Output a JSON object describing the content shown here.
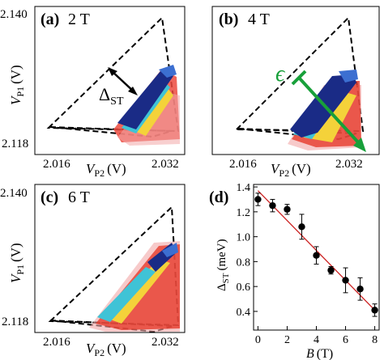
{
  "panels": [
    {
      "id": "a",
      "label": "(a)",
      "field": "2 T",
      "y_label": "V",
      "y_label_sub": "P1",
      "y_label_unit": "(V)",
      "y_ticks": [
        "2.140",
        "2.118"
      ],
      "x_label": "V",
      "x_label_sub": "P2",
      "x_label_unit": "(V)",
      "x_ticks": [
        "2.016",
        "2.032"
      ],
      "annotation": "Δ",
      "annotation_sub": "ST"
    },
    {
      "id": "b",
      "label": "(b)",
      "field": "4 T",
      "x_label": "V",
      "x_label_sub": "P2",
      "x_label_unit": "(V)",
      "x_ticks": [
        "2.016",
        "2.032"
      ],
      "annotation": "ϵ",
      "annotation_color": "#18a03a"
    },
    {
      "id": "c",
      "label": "(c)",
      "field": "6 T",
      "y_label": "V",
      "y_label_sub": "P1",
      "y_label_unit": "(V)",
      "y_ticks": [
        "2.140",
        "2.118"
      ],
      "x_label": "V",
      "x_label_sub": "P2",
      "x_label_unit": "(V)",
      "x_ticks": [
        "2.016",
        "2.032"
      ]
    }
  ],
  "chart_data": [
    {
      "type": "scatter",
      "panel_label": "(d)",
      "xlabel": "B",
      "xlabel_unit": "(T)",
      "ylabel": "Δ",
      "ylabel_sub": "ST",
      "ylabel_unit": "(meV)",
      "xlim": [
        -0.3,
        8.3
      ],
      "ylim": [
        0.25,
        1.42
      ],
      "x_ticks": [
        0,
        2,
        4,
        6,
        8
      ],
      "y_ticks": [
        0.4,
        0.6,
        0.8,
        1.0,
        1.2,
        1.4
      ],
      "y_tick_labels": [
        "0.4",
        "0.6",
        "0.8",
        "1.0",
        "1.2",
        "1.4"
      ],
      "marker_color": "#000000",
      "fit_color": "#cc2222",
      "series": [
        {
          "x": [
            0,
            1,
            2,
            3,
            4,
            5,
            6,
            7,
            8
          ],
          "y": [
            1.3,
            1.25,
            1.22,
            1.08,
            0.85,
            0.73,
            0.65,
            0.58,
            0.41
          ],
          "error": [
            0.05,
            0.05,
            0.04,
            0.1,
            0.07,
            0.03,
            0.1,
            0.09,
            0.05
          ]
        }
      ],
      "fit_line": {
        "x": [
          0,
          8
        ],
        "y": [
          1.37,
          0.41
        ]
      }
    }
  ]
}
